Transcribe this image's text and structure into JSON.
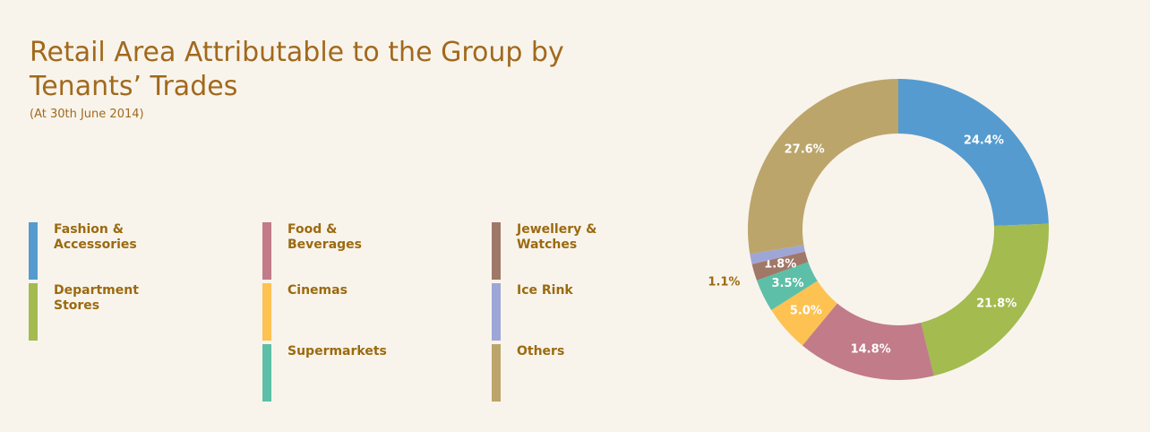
{
  "chart_data": {
    "type": "donut",
    "title": "Retail Area Attributable to the Group by Tenants’ Trades",
    "subtitle": "(At 30th June 2014)",
    "categories": [
      "Fashion & Accessories",
      "Department Stores",
      "Food & Beverages",
      "Cinemas",
      "Supermarkets",
      "Jewellery & Watches",
      "Ice Rink",
      "Others"
    ],
    "values": [
      24.4,
      21.8,
      14.8,
      5.0,
      3.5,
      1.8,
      1.1,
      27.6
    ],
    "value_labels": [
      "24.4%",
      "21.8%",
      "14.8%",
      "5.0%",
      "3.5%",
      "1.8%",
      "1.1%",
      "27.6%"
    ],
    "colors": [
      "#559bcf",
      "#a3bb4f",
      "#c17b89",
      "#fdc251",
      "#5dbfa7",
      "#a07868",
      "#9da6d6",
      "#bba56a"
    ]
  }
}
